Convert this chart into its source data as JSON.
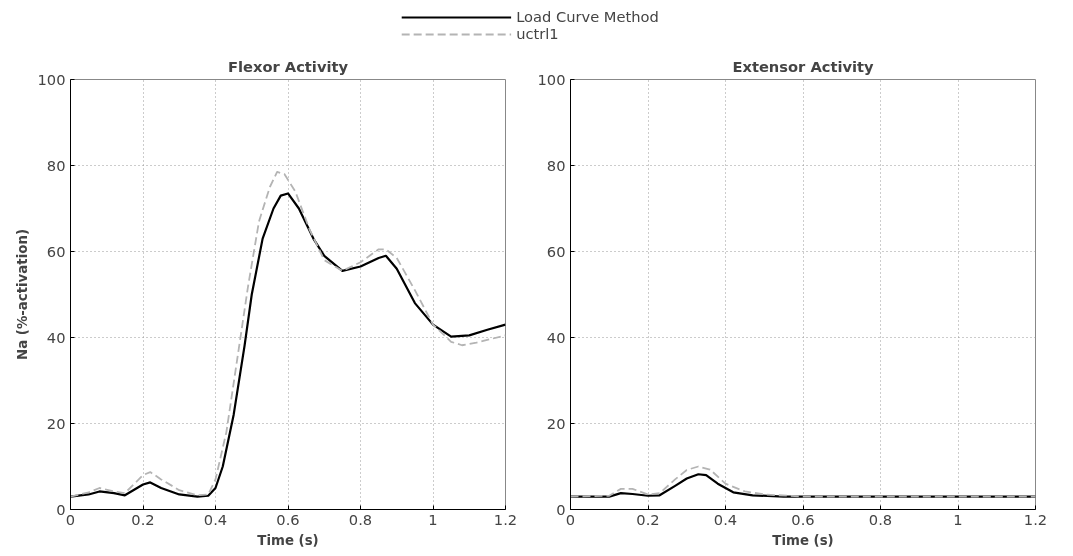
{
  "chart_data": [
    {
      "type": "line",
      "title": "Flexor Activity",
      "xlabel": "Time (s)",
      "ylabel": "Na (%-activation)",
      "xlim": [
        0,
        1.2
      ],
      "ylim": [
        0,
        100
      ],
      "xticks": [
        0,
        0.2,
        0.4,
        0.6,
        0.8,
        1,
        1.2
      ],
      "yticks": [
        0,
        20,
        40,
        60,
        80,
        100
      ],
      "grid": true,
      "legend": "top",
      "series": [
        {
          "name": "Load Curve Method",
          "color": "#000000",
          "line_style": "solid",
          "x": [
            0,
            0.05,
            0.08,
            0.12,
            0.15,
            0.2,
            0.22,
            0.25,
            0.3,
            0.35,
            0.38,
            0.4,
            0.42,
            0.45,
            0.48,
            0.5,
            0.53,
            0.56,
            0.58,
            0.6,
            0.63,
            0.67,
            0.7,
            0.75,
            0.8,
            0.85,
            0.87,
            0.9,
            0.95,
            1.0,
            1.05,
            1.1,
            1.15,
            1.2
          ],
          "values": [
            3,
            3.5,
            4.2,
            3.8,
            3.3,
            5.8,
            6.3,
            5,
            3.5,
            3,
            3.2,
            5,
            10,
            22,
            38,
            50,
            63,
            70,
            73,
            73.5,
            70,
            63,
            59,
            55.5,
            56.5,
            58.5,
            59,
            56,
            48,
            43,
            40.2,
            40.5,
            41.8,
            43
          ]
        },
        {
          "name": "uctrl1",
          "color": "#b4b4b4",
          "line_style": "dashed",
          "x": [
            0,
            0.05,
            0.08,
            0.12,
            0.15,
            0.2,
            0.22,
            0.25,
            0.3,
            0.35,
            0.38,
            0.4,
            0.43,
            0.46,
            0.49,
            0.52,
            0.55,
            0.57,
            0.59,
            0.62,
            0.66,
            0.7,
            0.75,
            0.8,
            0.85,
            0.87,
            0.9,
            0.95,
            1.0,
            1.05,
            1.08,
            1.12,
            1.2
          ],
          "values": [
            3,
            4,
            5,
            4.2,
            3.8,
            8,
            8.7,
            7,
            4.5,
            3.3,
            3.5,
            7,
            18,
            35,
            52,
            67,
            75,
            78.5,
            78,
            74,
            65,
            58,
            55.5,
            57.5,
            60.5,
            60.5,
            58.5,
            51,
            43,
            39,
            38.2,
            38.8,
            40.5
          ]
        }
      ]
    },
    {
      "type": "line",
      "title": "Extensor Activity",
      "xlabel": "Time (s)",
      "xlim": [
        0,
        1.2
      ],
      "ylim": [
        0,
        100
      ],
      "xticks": [
        0,
        0.2,
        0.4,
        0.6,
        0.8,
        1,
        1.2
      ],
      "yticks": [
        0,
        20,
        40,
        60,
        80,
        100
      ],
      "grid": true,
      "series": [
        {
          "color": "#000000",
          "line_style": "solid",
          "x": [
            0,
            0.1,
            0.13,
            0.16,
            0.2,
            0.23,
            0.27,
            0.3,
            0.33,
            0.35,
            0.38,
            0.42,
            0.47,
            0.55,
            1.2
          ],
          "values": [
            3,
            3,
            3.8,
            3.6,
            3.2,
            3.3,
            5.5,
            7.2,
            8.2,
            8,
            6,
            4,
            3.3,
            3,
            3
          ]
        },
        {
          "color": "#b4b4b4",
          "line_style": "dashed",
          "x": [
            0,
            0.1,
            0.13,
            0.16,
            0.2,
            0.23,
            0.27,
            0.3,
            0.33,
            0.36,
            0.4,
            0.45,
            0.5,
            0.6,
            1.2
          ],
          "values": [
            3,
            3.2,
            4.8,
            4.8,
            3.5,
            3.8,
            7,
            9.2,
            10,
            9.3,
            6,
            4.2,
            3.5,
            3,
            3
          ]
        }
      ]
    }
  ]
}
